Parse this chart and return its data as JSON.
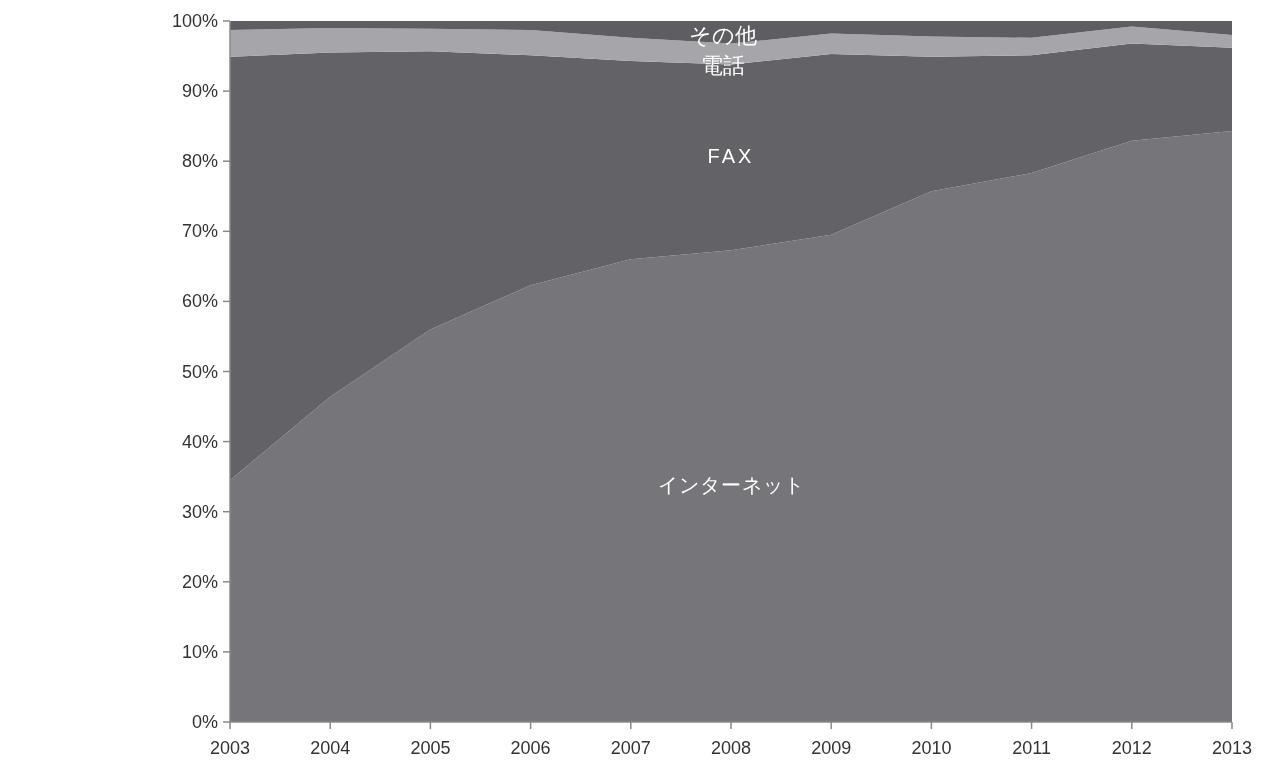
{
  "chart_data": {
    "type": "area",
    "stacked": true,
    "x": [
      2003,
      2004,
      2005,
      2006,
      2007,
      2008,
      2009,
      2010,
      2011,
      2012,
      2013
    ],
    "xlim": [
      2003,
      2013
    ],
    "xticks": [
      2003,
      2004,
      2005,
      2006,
      2007,
      2008,
      2009,
      2010,
      2011,
      2012,
      2013
    ],
    "ylim": [
      0,
      100
    ],
    "yticks": [
      {
        "value": 0,
        "label": "0%"
      },
      {
        "value": 10,
        "label": "10%"
      },
      {
        "value": 20,
        "label": "20%"
      },
      {
        "value": 30,
        "label": "30%"
      },
      {
        "value": 40,
        "label": "40%"
      },
      {
        "value": 50,
        "label": "50%"
      },
      {
        "value": 60,
        "label": "60%"
      },
      {
        "value": 70,
        "label": "70%"
      },
      {
        "value": 80,
        "label": "80%"
      },
      {
        "value": 90,
        "label": "90%"
      },
      {
        "value": 100,
        "label": "100%"
      }
    ],
    "series": [
      {
        "name": "インターネット",
        "color": "#76767a",
        "values": [
          34.5,
          46.4,
          56,
          62.3,
          66,
          67.3,
          69.5,
          75.7,
          78.3,
          82.9,
          84.3
        ]
      },
      {
        "name": "FAX",
        "color": "#636367",
        "values": [
          60.4,
          49.1,
          39.7,
          32.8,
          28.3,
          26.5,
          25.8,
          19.2,
          16.8,
          13.9,
          11.9
        ]
      },
      {
        "name": "電話",
        "color": "#a6a6aa",
        "values": [
          3.8,
          3.5,
          3.2,
          3.6,
          3.3,
          3.0,
          2.9,
          2.9,
          2.5,
          2.4,
          1.8
        ]
      },
      {
        "name": "その他",
        "color": "#5e5e62",
        "values": [
          1.3,
          1.0,
          1.1,
          1.3,
          2.4,
          3.2,
          1.8,
          2.2,
          2.4,
          0.8,
          2.0
        ]
      }
    ]
  }
}
